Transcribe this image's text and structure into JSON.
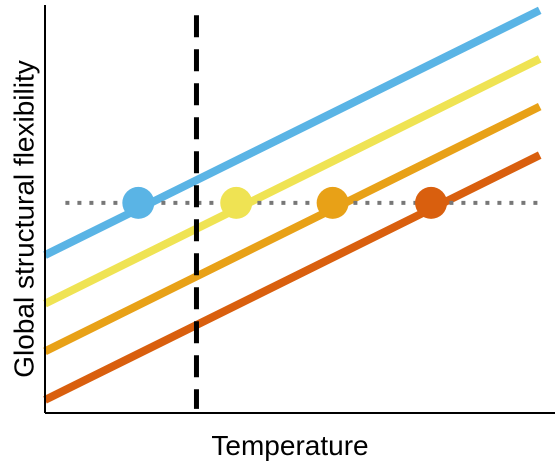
{
  "chart_data": {
    "type": "line",
    "title": "",
    "xlabel": "Temperature",
    "ylabel": "Global structural flexibility",
    "xlim": [
      0,
      10
    ],
    "ylim": [
      0,
      10
    ],
    "grid": false,
    "legend": "none",
    "series": [
      {
        "color": "#5ab4e5",
        "x": [
          0,
          9.7
        ],
        "y": [
          3.87,
          9.87
        ]
      },
      {
        "color": "#efe353",
        "x": [
          0,
          9.7
        ],
        "y": [
          2.68,
          8.68
        ]
      },
      {
        "color": "#e8a117",
        "x": [
          0,
          9.7
        ],
        "y": [
          1.51,
          7.51
        ]
      },
      {
        "color": "#d95f0e",
        "x": [
          0,
          9.7
        ],
        "y": [
          0.32,
          6.32
        ]
      }
    ],
    "threshold_y": 5.15,
    "reference_x": 2.97,
    "points": [
      {
        "x": 1.83,
        "y": 5.15,
        "color": "#5ab4e5"
      },
      {
        "x": 3.75,
        "y": 5.15,
        "color": "#efe353"
      },
      {
        "x": 5.64,
        "y": 5.15,
        "color": "#e8a117"
      },
      {
        "x": 7.57,
        "y": 5.15,
        "color": "#d95f0e"
      }
    ],
    "styles": {
      "axis_color": "#000000",
      "threshold_color": "#777777",
      "reference_color": "#000000"
    }
  }
}
